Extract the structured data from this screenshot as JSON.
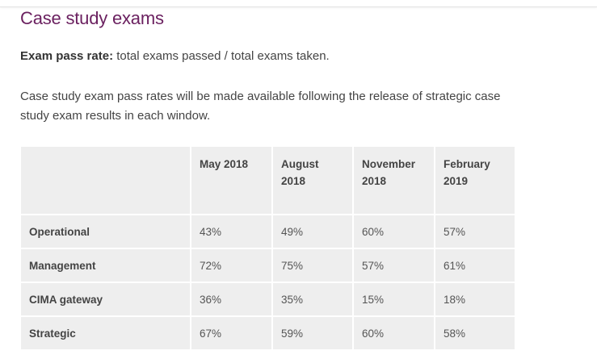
{
  "title": "Case study exams",
  "pass_rate": {
    "label": "Exam pass rate:",
    "text": " total exams passed / total exams taken."
  },
  "note": "Case study exam pass rates will be made available following the release of strategic case study exam results in each window.",
  "table": {
    "headers": [
      "",
      "May 2018",
      "August 2018",
      "November 2018",
      "February 2019"
    ],
    "rows": [
      {
        "label": "Operational",
        "values": [
          "43%",
          "49%",
          "60%",
          "57%"
        ]
      },
      {
        "label": "Management",
        "values": [
          "72%",
          "75%",
          "57%",
          "61%"
        ]
      },
      {
        "label": "CIMA gateway",
        "values": [
          "36%",
          "35%",
          "15%",
          "18%"
        ]
      },
      {
        "label": "Strategic",
        "values": [
          "67%",
          "59%",
          "60%",
          "58%"
        ]
      }
    ]
  }
}
